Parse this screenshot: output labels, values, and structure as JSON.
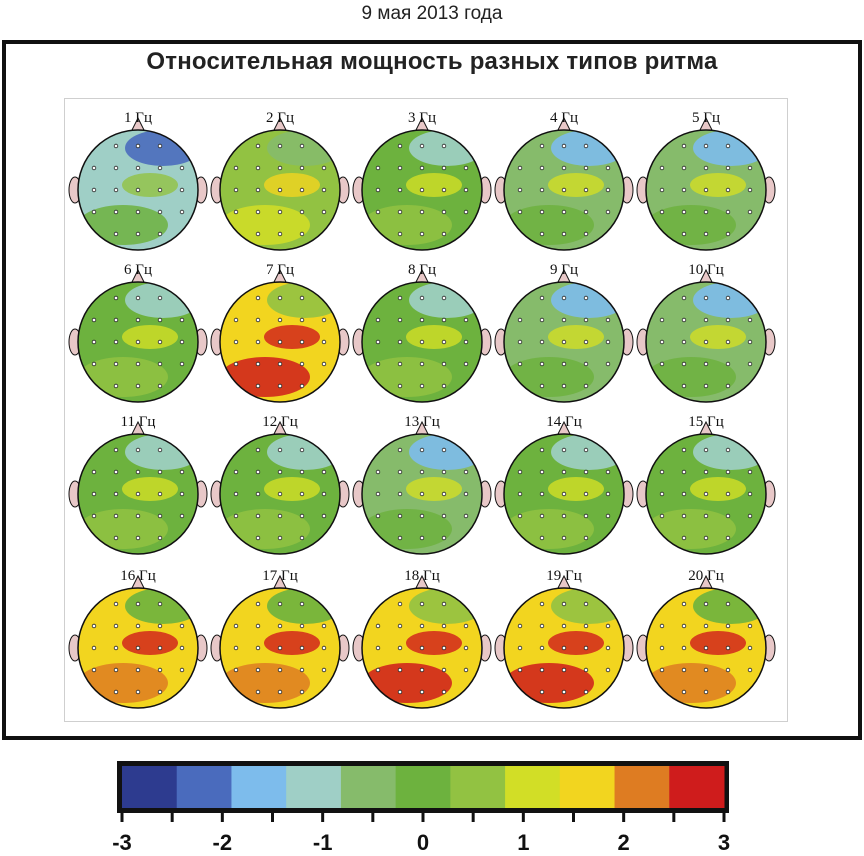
{
  "date": "9 мая 2013 года",
  "title": "Относительная мощность разных типов ритма",
  "colors": {
    "scale": [
      "#2d3b8f",
      "#4a6bbd",
      "#7dbcec",
      "#9fcfc6",
      "#86bb6b",
      "#6db23e",
      "#92c242",
      "#d2de26",
      "#f2d51f",
      "#de7c22",
      "#cf1c1c"
    ],
    "outline": "#111111",
    "ear": "#e8c8c8"
  },
  "scale_ticks": [
    "-3",
    "-2",
    "-1",
    "0",
    "1",
    "2",
    "3"
  ],
  "maps": [
    {
      "label": "1 Гц",
      "level": -1
    },
    {
      "label": "2 Гц",
      "level": 0.5
    },
    {
      "label": "3 Гц",
      "level": 0
    },
    {
      "label": "4 Гц",
      "level": -0.5
    },
    {
      "label": "5 Гц",
      "level": -0.5
    },
    {
      "label": "6 Гц",
      "level": 0
    },
    {
      "label": "7 Гц",
      "level": 2
    },
    {
      "label": "8 Гц",
      "level": 0
    },
    {
      "label": "9 Гц",
      "level": -0.5
    },
    {
      "label": "10 Гц",
      "level": -0.5
    },
    {
      "label": "11 Гц",
      "level": 0
    },
    {
      "label": "12 Гц",
      "level": 0
    },
    {
      "label": "13 Гц",
      "level": -0.5
    },
    {
      "label": "14 Гц",
      "level": 0
    },
    {
      "label": "15 Гц",
      "level": 0
    },
    {
      "label": "16 Гц",
      "level": 1.5
    },
    {
      "label": "17 Гц",
      "level": 1.5
    },
    {
      "label": "18 Гц",
      "level": 2
    },
    {
      "label": "19 Гц",
      "level": 2
    },
    {
      "label": "20 Гц",
      "level": 1.5
    }
  ]
}
